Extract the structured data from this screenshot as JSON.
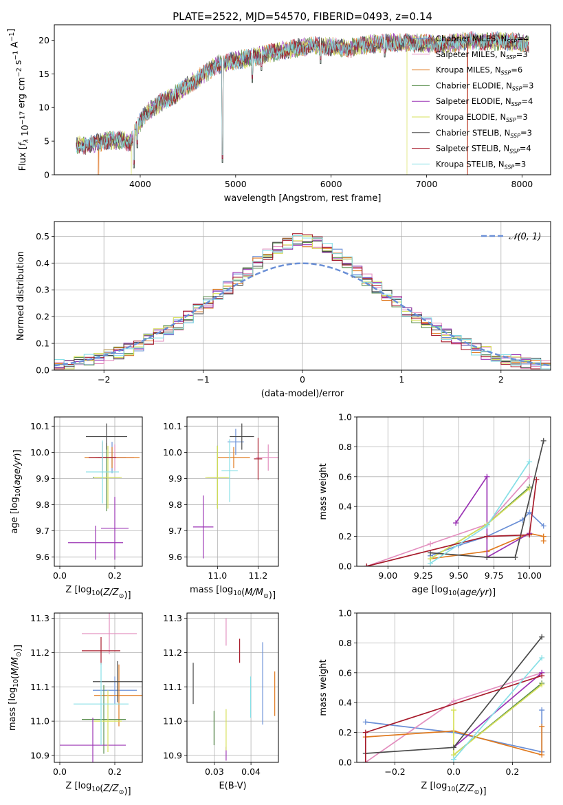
{
  "figure_title": "PLATE=2522, MJD=54570, FIBERID=0493, z=0.14",
  "colors": {
    "Chabrier MILES": "#6a8fd6",
    "Salpeter MILES": "#e38fbf",
    "Kroupa MILES": "#e07a1f",
    "Chabrier ELODIE": "#5c8f4f",
    "Salpeter ELODIE": "#9b34b5",
    "Kroupa ELODIE": "#d6e05a",
    "Chabrier STELIB": "#4a4a4a",
    "Salpeter STELIB": "#a81c2c",
    "Kroupa STELIB": "#86dfe6",
    "normal_curve": "#6a8fd6"
  },
  "chart_data": [
    {
      "id": "spectrum",
      "type": "line",
      "xlabel": "wavelength [Angstrom, rest frame]",
      "ylabel": "Flux [f_λ 10^-17 erg cm^-2 s^-1 A^-1]",
      "xlim": [
        3100,
        8300
      ],
      "ylim": [
        0,
        22.3
      ],
      "xticks": [
        4000,
        5000,
        6000,
        7000,
        8000
      ],
      "yticks": [
        0,
        5,
        10,
        15,
        20
      ],
      "grid": false,
      "legend_position": "right",
      "legend": [
        {
          "name": "Chabrier MILES",
          "nssp": "4"
        },
        {
          "name": "Salpeter MILES",
          "nssp": "3"
        },
        {
          "name": "Kroupa MILES",
          "nssp": "6"
        },
        {
          "name": "Chabrier ELODIE",
          "nssp": "3"
        },
        {
          "name": "Salpeter ELODIE",
          "nssp": "4"
        },
        {
          "name": "Kroupa ELODIE",
          "nssp": "3"
        },
        {
          "name": "Chabrier STELIB",
          "nssp": "3"
        },
        {
          "name": "Salpeter STELIB",
          "nssp": "4"
        },
        {
          "name": "Kroupa STELIB",
          "nssp": "3"
        }
      ],
      "continuum": [
        [
          3330,
          4.3
        ],
        [
          3450,
          4.4
        ],
        [
          3600,
          5.0
        ],
        [
          3750,
          5.2
        ],
        [
          3850,
          5.0
        ],
        [
          3900,
          4.8
        ],
        [
          3950,
          6.5
        ],
        [
          4050,
          9.0
        ],
        [
          4200,
          10.6
        ],
        [
          4400,
          12.2
        ],
        [
          4600,
          14.3
        ],
        [
          4800,
          16.3
        ],
        [
          5000,
          17.0
        ],
        [
          5200,
          17.5
        ],
        [
          5400,
          18.2
        ],
        [
          5600,
          18.7
        ],
        [
          5800,
          19.2
        ],
        [
          6000,
          19.0
        ],
        [
          6200,
          18.8
        ],
        [
          6400,
          19.4
        ],
        [
          6600,
          19.6
        ],
        [
          6800,
          19.7
        ],
        [
          7000,
          19.5
        ],
        [
          7200,
          19.4
        ],
        [
          7400,
          19.9
        ],
        [
          7600,
          19.8
        ],
        [
          7800,
          19.9
        ],
        [
          8000,
          19.6
        ],
        [
          8070,
          19.5
        ]
      ],
      "features": [
        {
          "x": 3934,
          "y": 1.0
        },
        {
          "x": 3969,
          "y": 4.0
        },
        {
          "x": 4101,
          "y": 9.0
        },
        {
          "x": 4340,
          "y": 10.4
        },
        {
          "x": 4863,
          "y": 1.8
        },
        {
          "x": 5175,
          "y": 13.7
        },
        {
          "x": 5270,
          "y": 15.5
        },
        {
          "x": 5890,
          "y": 16.5
        },
        {
          "x": 6563,
          "y": 17.5
        }
      ],
      "model_drops": [
        {
          "series": "Salpeter MILES",
          "x": 3560
        },
        {
          "series": "Kroupa MILES",
          "x": 3565
        },
        {
          "series": "Kroupa ELODIE",
          "x": 3905
        },
        {
          "series": "Kroupa MILES",
          "x": 6800
        },
        {
          "series": "Kroupa ELODIE",
          "x": 6795
        },
        {
          "series": "Salpeter STELIB",
          "x": 7430
        },
        {
          "series": "Kroupa MILES",
          "x": 7425
        }
      ]
    },
    {
      "id": "residuals",
      "type": "step-histogram",
      "xlabel": "(data-model)/error",
      "ylabel": "Normed distribution",
      "xlim": [
        -2.5,
        2.5
      ],
      "ylim": [
        0,
        0.555
      ],
      "xticks": [
        -2,
        -1,
        0,
        1,
        2
      ],
      "yticks": [
        0.0,
        0.1,
        0.2,
        0.3,
        0.4,
        0.5
      ],
      "grid": true,
      "legend_position": "top-right",
      "legend": [
        "𝒩(0, 1)"
      ],
      "bin_width": 0.1
    },
    {
      "id": "age_vs_Z",
      "type": "errorbar",
      "xlabel": "Z [log10(Z/Z⊙)]",
      "ylabel": "age [log10(age/yr)]",
      "xlim": [
        -0.02,
        0.3
      ],
      "ylim": [
        9.565,
        10.135
      ],
      "xticks": [
        0.0,
        0.2
      ],
      "yticks": [
        9.6,
        9.7,
        9.8,
        9.9,
        10.0,
        10.1
      ],
      "grid": true,
      "points": [
        {
          "series": "Chabrier MILES",
          "x": 0.19,
          "xerr": 0.05,
          "y": 9.98,
          "yerr": 0.06
        },
        {
          "series": "Salpeter MILES",
          "x": 0.2,
          "xerr": 0.07,
          "y": 9.98,
          "yerr": 0.05
        },
        {
          "series": "Kroupa MILES",
          "x": 0.19,
          "xerr": 0.1,
          "y": 9.98,
          "yerr": 0.04
        },
        {
          "series": "Chabrier ELODIE",
          "x": 0.17,
          "xerr": 0.05,
          "y": 9.905,
          "yerr": 0.13
        },
        {
          "series": "Salpeter ELODIE",
          "x": 0.13,
          "xerr": 0.1,
          "y": 9.655,
          "yerr": 0.065
        },
        {
          "series": "Salpeter ELODIE",
          "x": 0.2,
          "xerr": 0.05,
          "y": 9.71,
          "yerr": 0.12
        },
        {
          "series": "Kroupa ELODIE",
          "x": 0.175,
          "xerr": 0.05,
          "y": 9.905,
          "yerr": 0.12
        },
        {
          "series": "Chabrier STELIB",
          "x": 0.17,
          "xerr": 0.075,
          "y": 10.06,
          "yerr": 0.05
        },
        {
          "series": "Salpeter STELIB",
          "x": 0.155,
          "xerr": 0.05,
          "y": 9.98,
          "yerr": 0.06
        },
        {
          "series": "Kroupa STELIB",
          "x": 0.155,
          "xerr": 0.06,
          "y": 9.925,
          "yerr": 0.12
        }
      ]
    },
    {
      "id": "age_vs_mass",
      "type": "errorbar",
      "xlabel": "mass [log10(M/M⊙)]",
      "ylabel": "",
      "xlim": [
        10.85,
        11.3
      ],
      "ylim": [
        9.565,
        10.135
      ],
      "xticks": [
        11.0,
        11.2
      ],
      "yticks": [
        9.6,
        9.7,
        9.8,
        9.9,
        10.0,
        10.1
      ],
      "grid": true,
      "points": [
        {
          "series": "Chabrier MILES",
          "x": 11.09,
          "xerr": 0.04,
          "y": 10.04,
          "yerr": 0.05
        },
        {
          "series": "Salpeter MILES",
          "x": 11.25,
          "xerr": 0.06,
          "y": 9.98,
          "yerr": 0.05
        },
        {
          "series": "Kroupa MILES",
          "x": 11.08,
          "xerr": 0.08,
          "y": 9.98,
          "yerr": 0.04
        },
        {
          "series": "Chabrier ELODIE",
          "x": 11.0,
          "xerr": 0.05,
          "y": 9.905,
          "yerr": 0.12
        },
        {
          "series": "Salpeter ELODIE",
          "x": 10.93,
          "xerr": 0.05,
          "y": 9.715,
          "yerr": 0.12
        },
        {
          "series": "Kroupa ELODIE",
          "x": 11.0,
          "xerr": 0.06,
          "y": 9.905,
          "yerr": 0.12
        },
        {
          "series": "Chabrier STELIB",
          "x": 11.12,
          "xerr": 0.06,
          "y": 10.06,
          "yerr": 0.05
        },
        {
          "series": "Salpeter STELIB",
          "x": 11.2,
          "xerr": 0.02,
          "y": 9.975,
          "yerr": 0.08
        },
        {
          "series": "Kroupa STELIB",
          "x": 11.06,
          "xerr": 0.04,
          "y": 9.93,
          "yerr": 0.12
        }
      ]
    },
    {
      "id": "weight_vs_age",
      "type": "line",
      "xlabel": "age [log10(age/yr)]",
      "ylabel": "mass weight",
      "xlim": [
        8.78,
        10.15
      ],
      "ylim": [
        0.0,
        1.0
      ],
      "xticks": [
        9.0,
        9.25,
        9.5,
        9.75,
        10.0
      ],
      "yticks": [
        0.0,
        0.2,
        0.4,
        0.6,
        0.8,
        1.0
      ],
      "grid": true,
      "series": [
        {
          "name": "Chabrier MILES",
          "points": [
            [
              9.3,
              0.07
            ],
            [
              9.5,
              0.14
            ],
            [
              9.7,
              0.2
            ],
            [
              9.95,
              0.31
            ],
            [
              10.0,
              0.36
            ],
            [
              10.1,
              0.27
            ]
          ]
        },
        {
          "name": "Salpeter MILES",
          "points": [
            [
              8.85,
              0.0
            ],
            [
              9.3,
              0.15
            ],
            [
              9.7,
              0.28
            ],
            [
              10.0,
              0.6
            ]
          ]
        },
        {
          "name": "Kroupa MILES",
          "points": [
            [
              9.3,
              0.05
            ],
            [
              9.7,
              0.1
            ],
            [
              10.0,
              0.22
            ],
            [
              10.1,
              0.2
            ],
            [
              10.1,
              0.17
            ]
          ]
        },
        {
          "name": "Chabrier ELODIE",
          "points": [
            [
              9.3,
              0.05
            ],
            [
              9.7,
              0.28
            ],
            [
              10.0,
              0.53
            ]
          ]
        },
        {
          "name": "Salpeter ELODIE",
          "points": [
            [
              9.48,
              0.29
            ],
            [
              9.7,
              0.6
            ],
            [
              9.7,
              0.06
            ],
            [
              10.0,
              0.22
            ]
          ]
        },
        {
          "name": "Kroupa ELODIE",
          "points": [
            [
              9.3,
              0.05
            ],
            [
              9.7,
              0.28
            ],
            [
              10.0,
              0.52
            ]
          ]
        },
        {
          "name": "Chabrier STELIB",
          "points": [
            [
              9.3,
              0.09
            ],
            [
              9.7,
              0.06
            ],
            [
              9.9,
              0.06
            ],
            [
              10.1,
              0.84
            ]
          ]
        },
        {
          "name": "Salpeter STELIB",
          "points": [
            [
              8.85,
              0.0
            ],
            [
              9.7,
              0.2
            ],
            [
              10.0,
              0.21
            ],
            [
              10.05,
              0.58
            ]
          ]
        },
        {
          "name": "Kroupa STELIB",
          "points": [
            [
              9.3,
              0.02
            ],
            [
              9.7,
              0.27
            ],
            [
              10.0,
              0.7
            ]
          ]
        }
      ]
    },
    {
      "id": "mass_vs_Z",
      "type": "errorbar",
      "xlabel": "Z [log10(Z/Z⊙)]",
      "ylabel": "mass [log10(M/M⊙)]",
      "xlim": [
        -0.02,
        0.3
      ],
      "ylim": [
        10.88,
        11.315
      ],
      "xticks": [
        0.0,
        0.2
      ],
      "yticks": [
        10.9,
        11.0,
        11.1,
        11.2,
        11.3
      ],
      "grid": true,
      "points": [
        {
          "series": "Chabrier MILES",
          "x": 0.2,
          "xerr": 0.08,
          "y": 11.09,
          "yerr": 0.04
        },
        {
          "series": "Salpeter MILES",
          "x": 0.18,
          "xerr": 0.1,
          "y": 11.255,
          "yerr": 0.06
        },
        {
          "series": "Kroupa MILES",
          "x": 0.215,
          "xerr": 0.09,
          "y": 11.075,
          "yerr": 0.09
        },
        {
          "series": "Chabrier ELODIE",
          "x": 0.16,
          "xerr": 0.08,
          "y": 11.005,
          "yerr": 0.1
        },
        {
          "series": "Salpeter ELODIE",
          "x": 0.12,
          "xerr": 0.12,
          "y": 10.93,
          "yerr": 0.08
        },
        {
          "series": "Kroupa ELODIE",
          "x": 0.175,
          "xerr": 0.05,
          "y": 11.0,
          "yerr": 0.09
        },
        {
          "series": "Chabrier STELIB",
          "x": 0.21,
          "xerr": 0.09,
          "y": 11.115,
          "yerr": 0.06
        },
        {
          "series": "Salpeter STELIB",
          "x": 0.15,
          "xerr": 0.07,
          "y": 11.205,
          "yerr": 0.04
        },
        {
          "series": "Kroupa STELIB",
          "x": 0.15,
          "xerr": 0.1,
          "y": 11.05,
          "yerr": 0.12
        }
      ]
    },
    {
      "id": "mass_vs_ebv",
      "type": "errorbar",
      "xlabel": "E(B-V)",
      "ylabel": "",
      "xlim": [
        0.0225,
        0.0475
      ],
      "ylim": [
        10.88,
        11.315
      ],
      "xticks": [
        0.03,
        0.04
      ],
      "yticks": [
        10.9,
        11.0,
        11.1,
        11.2,
        11.3
      ],
      "grid": true,
      "points": [
        {
          "series": "Chabrier MILES",
          "x": 0.0432,
          "y": 11.11,
          "yerr": 0.12
        },
        {
          "series": "Salpeter MILES",
          "x": 0.0332,
          "y": 11.26,
          "yerr": 0.04
        },
        {
          "series": "Kroupa MILES",
          "x": 0.0465,
          "y": 11.08,
          "yerr": 0.065
        },
        {
          "series": "Chabrier ELODIE",
          "x": 0.0299,
          "y": 10.98,
          "yerr": 0.05
        },
        {
          "series": "Salpeter ELODIE",
          "x": 0.0332,
          "y": 10.905,
          "yerr": 0.02
        },
        {
          "series": "Kroupa ELODIE",
          "x": 0.0332,
          "y": 10.975,
          "yerr": 0.06
        },
        {
          "series": "Chabrier STELIB",
          "x": 0.0242,
          "y": 11.11,
          "yerr": 0.06
        },
        {
          "series": "Salpeter STELIB",
          "x": 0.0369,
          "y": 11.205,
          "yerr": 0.035
        },
        {
          "series": "Kroupa STELIB",
          "x": 0.0399,
          "y": 11.07,
          "yerr": 0.06
        }
      ]
    },
    {
      "id": "weight_vs_Z",
      "type": "line",
      "xlabel": "Z [log10(Z/Z⊙)]",
      "ylabel": "mass weight",
      "xlim": [
        -0.33,
        0.33
      ],
      "ylim": [
        0.0,
        1.0
      ],
      "xticks": [
        -0.2,
        0.0,
        0.2
      ],
      "yticks": [
        0.0,
        0.2,
        0.4,
        0.6,
        0.8,
        1.0
      ],
      "grid": true,
      "series": [
        {
          "name": "Chabrier MILES",
          "points": [
            [
              -0.3,
              0.27
            ],
            [
              0.0,
              0.2
            ],
            [
              0.3,
              0.07
            ],
            [
              0.3,
              0.35
            ]
          ]
        },
        {
          "name": "Salpeter MILES",
          "points": [
            [
              -0.3,
              0.0
            ],
            [
              0.0,
              0.41
            ],
            [
              0.3,
              0.6
            ]
          ]
        },
        {
          "name": "Kroupa MILES",
          "points": [
            [
              -0.3,
              0.17
            ],
            [
              0.0,
              0.21
            ],
            [
              0.3,
              0.05
            ],
            [
              0.3,
              0.24
            ]
          ]
        },
        {
          "name": "Chabrier ELODIE",
          "points": [
            [
              0.0,
              0.05
            ],
            [
              0.3,
              0.53
            ]
          ]
        },
        {
          "name": "Salpeter ELODIE",
          "points": [
            [
              0.0,
              0.1
            ],
            [
              0.3,
              0.6
            ]
          ]
        },
        {
          "name": "Kroupa ELODIE",
          "points": [
            [
              0.0,
              0.35
            ],
            [
              0.0,
              0.05
            ],
            [
              0.3,
              0.52
            ]
          ]
        },
        {
          "name": "Chabrier STELIB",
          "points": [
            [
              -0.3,
              0.06
            ],
            [
              0.0,
              0.1
            ],
            [
              0.3,
              0.84
            ]
          ]
        },
        {
          "name": "Salpeter STELIB",
          "points": [
            [
              -0.3,
              0.0
            ],
            [
              -0.3,
              0.2
            ],
            [
              0.3,
              0.58
            ]
          ]
        },
        {
          "name": "Kroupa STELIB",
          "points": [
            [
              0.0,
              0.02
            ],
            [
              0.3,
              0.7
            ]
          ]
        }
      ]
    }
  ]
}
